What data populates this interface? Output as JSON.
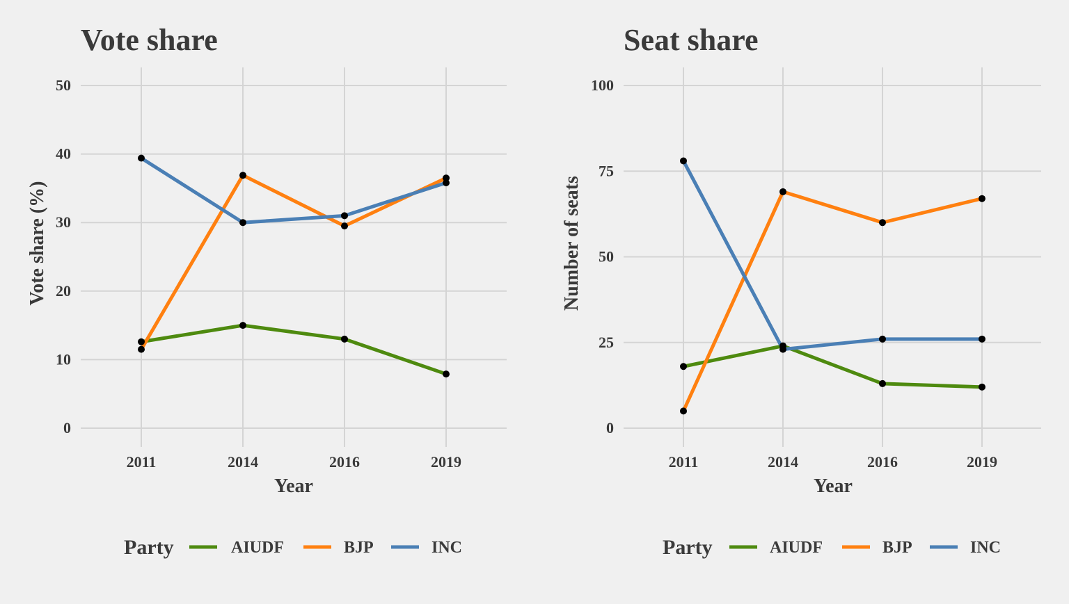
{
  "chart_data": [
    {
      "type": "line",
      "title": "Vote share",
      "xlabel": "Year",
      "ylabel": "Vote share (%)",
      "categories": [
        "2011",
        "2014",
        "2016",
        "2019"
      ],
      "ylim": [
        0,
        50
      ],
      "yticks": [
        0,
        10,
        20,
        30,
        40,
        50
      ],
      "grid": true,
      "legend_position": "bottom",
      "legend_title": "Party",
      "series": [
        {
          "name": "AIUDF",
          "color": "#4e8a0f",
          "values": [
            12.6,
            15.0,
            13.0,
            7.9
          ]
        },
        {
          "name": "BJP",
          "color": "#ff8010",
          "values": [
            11.5,
            36.9,
            29.5,
            36.5
          ]
        },
        {
          "name": "INC",
          "color": "#4a7fb5",
          "values": [
            39.4,
            30.0,
            31.0,
            35.8
          ]
        }
      ]
    },
    {
      "type": "line",
      "title": "Seat share",
      "xlabel": "Year",
      "ylabel": "Number of seats",
      "categories": [
        "2011",
        "2014",
        "2016",
        "2019"
      ],
      "ylim": [
        0,
        100
      ],
      "yticks": [
        0,
        25,
        50,
        75,
        100
      ],
      "grid": true,
      "legend_position": "bottom",
      "legend_title": "Party",
      "series": [
        {
          "name": "AIUDF",
          "color": "#4e8a0f",
          "values": [
            18,
            24,
            13,
            12
          ]
        },
        {
          "name": "BJP",
          "color": "#ff8010",
          "values": [
            5,
            69,
            60,
            67
          ]
        },
        {
          "name": "INC",
          "color": "#4a7fb5",
          "values": [
            78,
            23,
            26,
            26
          ]
        }
      ]
    }
  ]
}
